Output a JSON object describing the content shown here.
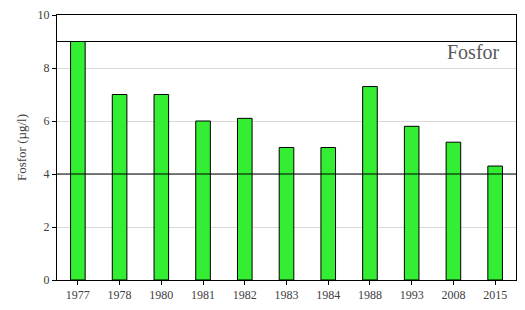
{
  "chart_data": {
    "type": "bar",
    "y_label": "Fosfor (µg/l)",
    "annotations": [
      {
        "text": "Fosfor"
      }
    ],
    "categories": [
      "1977",
      "1978",
      "1980",
      "1981",
      "1982",
      "1983",
      "1984",
      "1988",
      "1993",
      "2008",
      "2015"
    ],
    "values": [
      9,
      7,
      7,
      6,
      6.1,
      5,
      5,
      7.3,
      5.8,
      5.2,
      4.3
    ],
    "color": "#33ee33",
    "reference_lines": [
      9,
      4
    ],
    "ylim": [
      0,
      10
    ],
    "yticks": [
      0,
      2,
      4,
      6,
      8,
      10
    ],
    "grid": true
  }
}
